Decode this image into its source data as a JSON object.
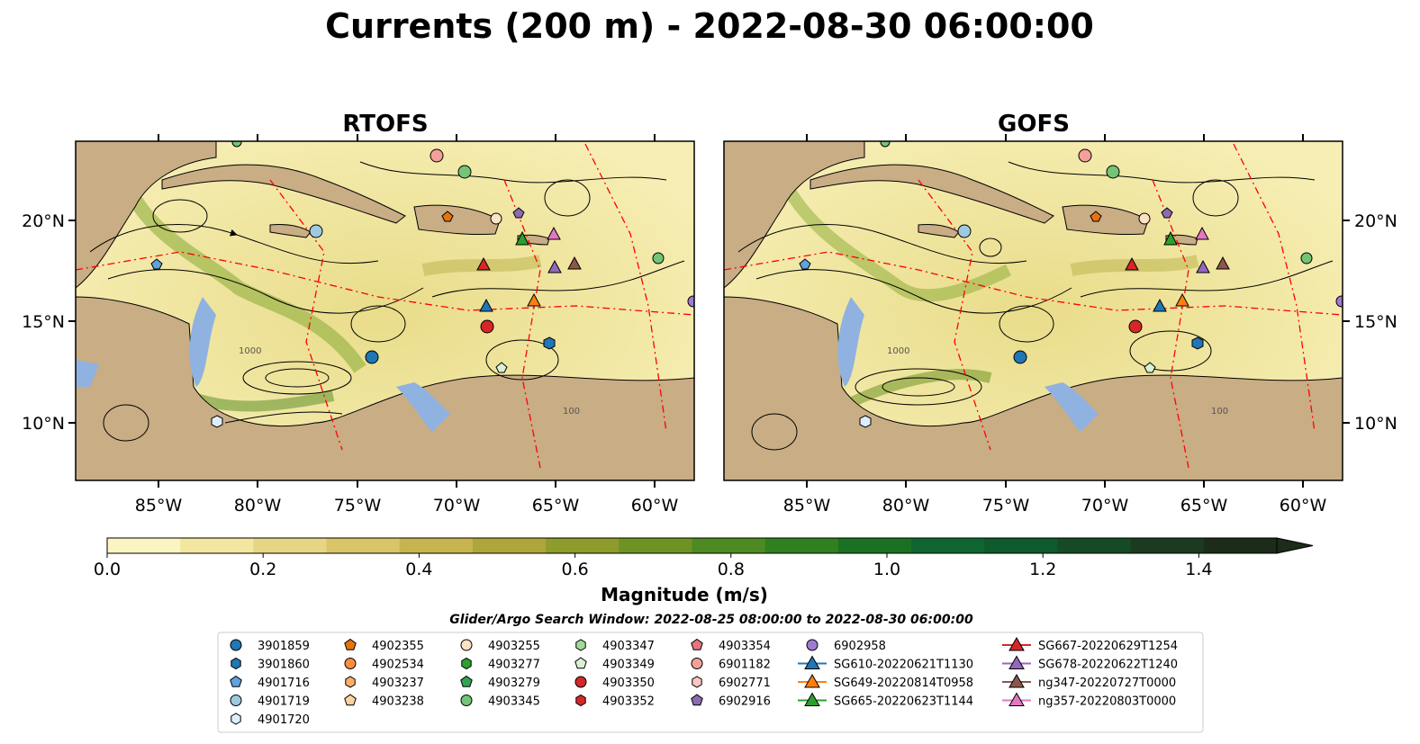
{
  "figure": {
    "title": "Currents (200 m) - 2022-08-30 06:00:00"
  },
  "panels": [
    {
      "title": "RTOFS"
    },
    {
      "title": "GOFS"
    }
  ],
  "map": {
    "lon_ticks": [
      "85°W",
      "80°W",
      "75°W",
      "70°W",
      "65°W",
      "60°W"
    ],
    "lat_ticks": [
      "20°N",
      "15°N",
      "10°N"
    ],
    "contour_labels": [
      "1000",
      "100"
    ],
    "colors": {
      "land": "#c8ad85",
      "shallow": "#8fb2e0",
      "low": "#f6eeb4",
      "mid": "#c9bf5e",
      "high": "#2f7a26",
      "eez": "#ff0000"
    }
  },
  "colorbar": {
    "label": "Magnitude (m/s)",
    "ticks": [
      "0.0",
      "0.2",
      "0.4",
      "0.6",
      "0.8",
      "1.0",
      "1.2",
      "1.4"
    ],
    "range": [
      0,
      1.5
    ],
    "extend": "max",
    "colors": [
      "#fbf5c4",
      "#f2e6a0",
      "#e6d582",
      "#d9c468",
      "#c8b44f",
      "#aea63a",
      "#8e9c2b",
      "#6e9324",
      "#4e8a22",
      "#31801f",
      "#1a7124",
      "#0f6530",
      "#0e5a2c",
      "#154a25",
      "#1c3a20",
      "#1b2d18"
    ]
  },
  "legend": {
    "subtitle": "Glider/Argo Search Window: 2022-08-25 08:00:00 to 2022-08-30 06:00:00",
    "columns": [
      [
        {
          "label": "3901859",
          "marker": "circle",
          "color": "#1f77b4"
        },
        {
          "label": "3901860",
          "marker": "hexagon",
          "color": "#1f77b4"
        },
        {
          "label": "4901716",
          "marker": "pentagon",
          "color": "#5fa2dd"
        },
        {
          "label": "4901719",
          "marker": "circle",
          "color": "#9ecae1"
        },
        {
          "label": "4901720",
          "marker": "hexagon",
          "color": "#ddeefa"
        }
      ],
      [
        {
          "label": "4902355",
          "marker": "pentagon",
          "color": "#e6730c"
        },
        {
          "label": "4902534",
          "marker": "circle",
          "color": "#fd8d3c"
        },
        {
          "label": "4903237",
          "marker": "hexagon",
          "color": "#fdae6b"
        },
        {
          "label": "4903238",
          "marker": "pentagon",
          "color": "#fdd0a2"
        }
      ],
      [
        {
          "label": "4903255",
          "marker": "circle",
          "color": "#fde2c4"
        },
        {
          "label": "4903277",
          "marker": "hexagon",
          "color": "#2ca02c"
        },
        {
          "label": "4903279",
          "marker": "pentagon",
          "color": "#31a354"
        },
        {
          "label": "4903345",
          "marker": "circle",
          "color": "#74c476"
        }
      ],
      [
        {
          "label": "4903347",
          "marker": "hexagon",
          "color": "#a1d99b"
        },
        {
          "label": "4903349",
          "marker": "pentagon",
          "color": "#d9f0d3"
        },
        {
          "label": "4903350",
          "marker": "circle",
          "color": "#d62728"
        },
        {
          "label": "4903352",
          "marker": "hexagon",
          "color": "#d62728"
        }
      ],
      [
        {
          "label": "4903354",
          "marker": "pentagon",
          "color": "#e7747f"
        },
        {
          "label": "6901182",
          "marker": "circle",
          "color": "#f4a09a"
        },
        {
          "label": "6902771",
          "marker": "hexagon",
          "color": "#fcc5c0"
        },
        {
          "label": "6902916",
          "marker": "pentagon",
          "color": "#8c6bb1"
        }
      ],
      [
        {
          "label": "6902958",
          "marker": "circle",
          "color": "#9e7bd0"
        },
        {
          "label": "SG610-20220621T1130",
          "marker": "triangle-line",
          "color": "#1f77b4"
        },
        {
          "label": "SG649-20220814T0958",
          "marker": "triangle-line",
          "color": "#ff7f0e"
        },
        {
          "label": "SG665-20220623T1144",
          "marker": "triangle-line",
          "color": "#2ca02c"
        }
      ],
      [
        {
          "label": "SG667-20220629T1254",
          "marker": "triangle-line",
          "color": "#d62728"
        },
        {
          "label": "SG678-20220622T1240",
          "marker": "triangle-line",
          "color": "#9467bd"
        },
        {
          "label": "ng347-20220727T0000",
          "marker": "triangle-line",
          "color": "#8c564b"
        },
        {
          "label": "ng357-20220803T0000",
          "marker": "triangle-line",
          "color": "#e377c2"
        }
      ]
    ]
  }
}
